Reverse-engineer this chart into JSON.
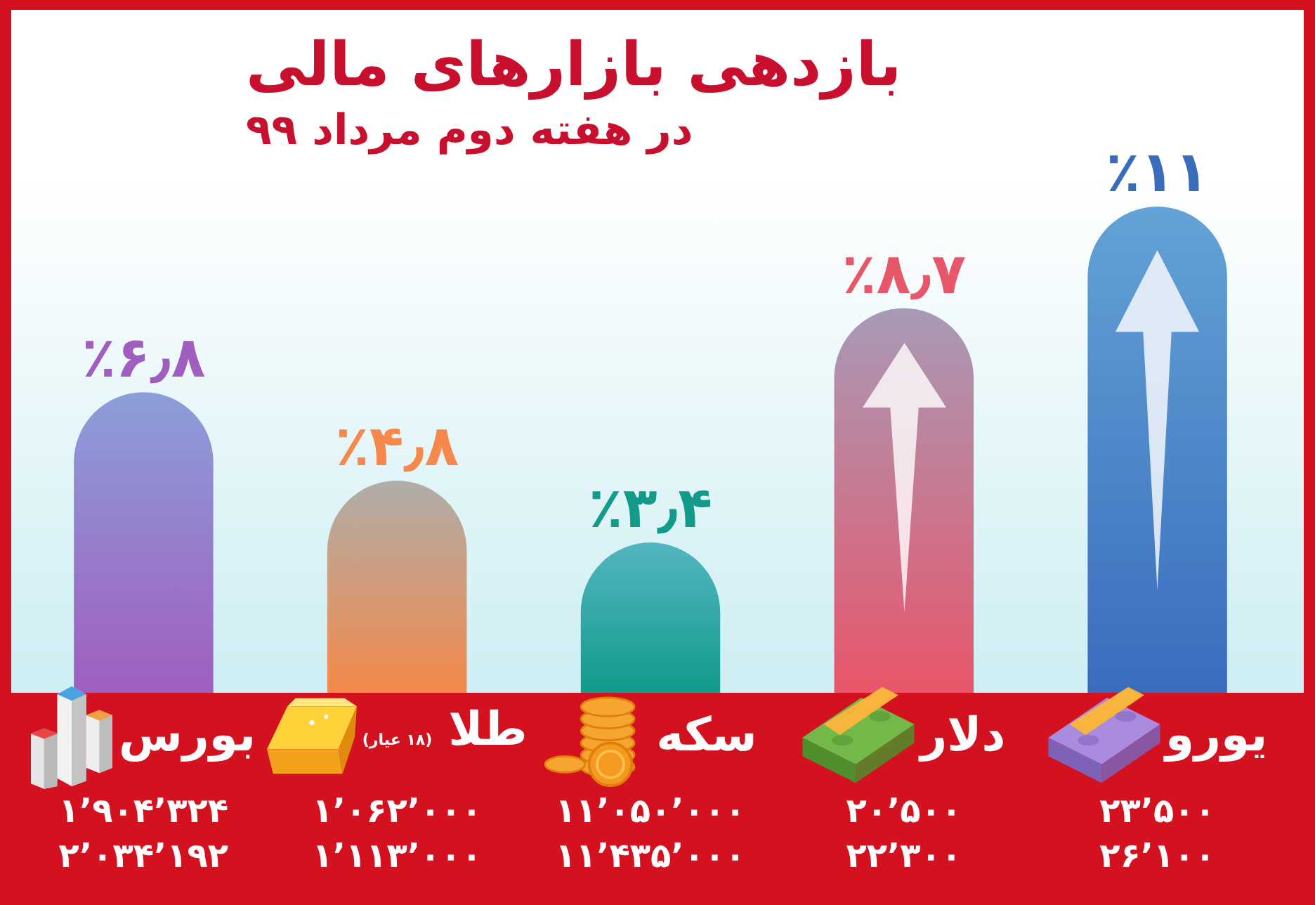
{
  "chart_data": {
    "type": "bar",
    "title": "بازدهی بازارهای مالی",
    "subtitle": "در هفته دوم مرداد ۹۹",
    "categories": [
      "بورس",
      "طلا (۱۸ عیار)",
      "سکه",
      "دلار",
      "یورو"
    ],
    "values": [
      6.8,
      4.8,
      3.4,
      8.7,
      11
    ],
    "colors": [
      "#a05ec0",
      "#f5884a",
      "#129a8a",
      "#e8566a",
      "#3a6cbc"
    ],
    "value_labels": [
      "٪۶٫۸",
      "٪۴٫۸",
      "٪۳٫۴",
      "٪۸٫۷",
      "٪۱۱"
    ],
    "annotations": [
      "۱٬۹۰۴٬۳۲۴",
      "۲٬۰۳۴٬۱۹۲",
      "۱٬۰۶۲٬۰۰۰",
      "۱٬۱۱۳٬۰۰۰",
      "۱۱٬۰۵۰٬۰۰۰",
      "۱۱٬۴۳۵٬۰۰۰",
      "۲۰٬۵۰۰",
      "۲۲٬۳۰۰",
      "۲۳٬۵۰۰",
      "۲۶٬۱۰۰"
    ]
  }
}
